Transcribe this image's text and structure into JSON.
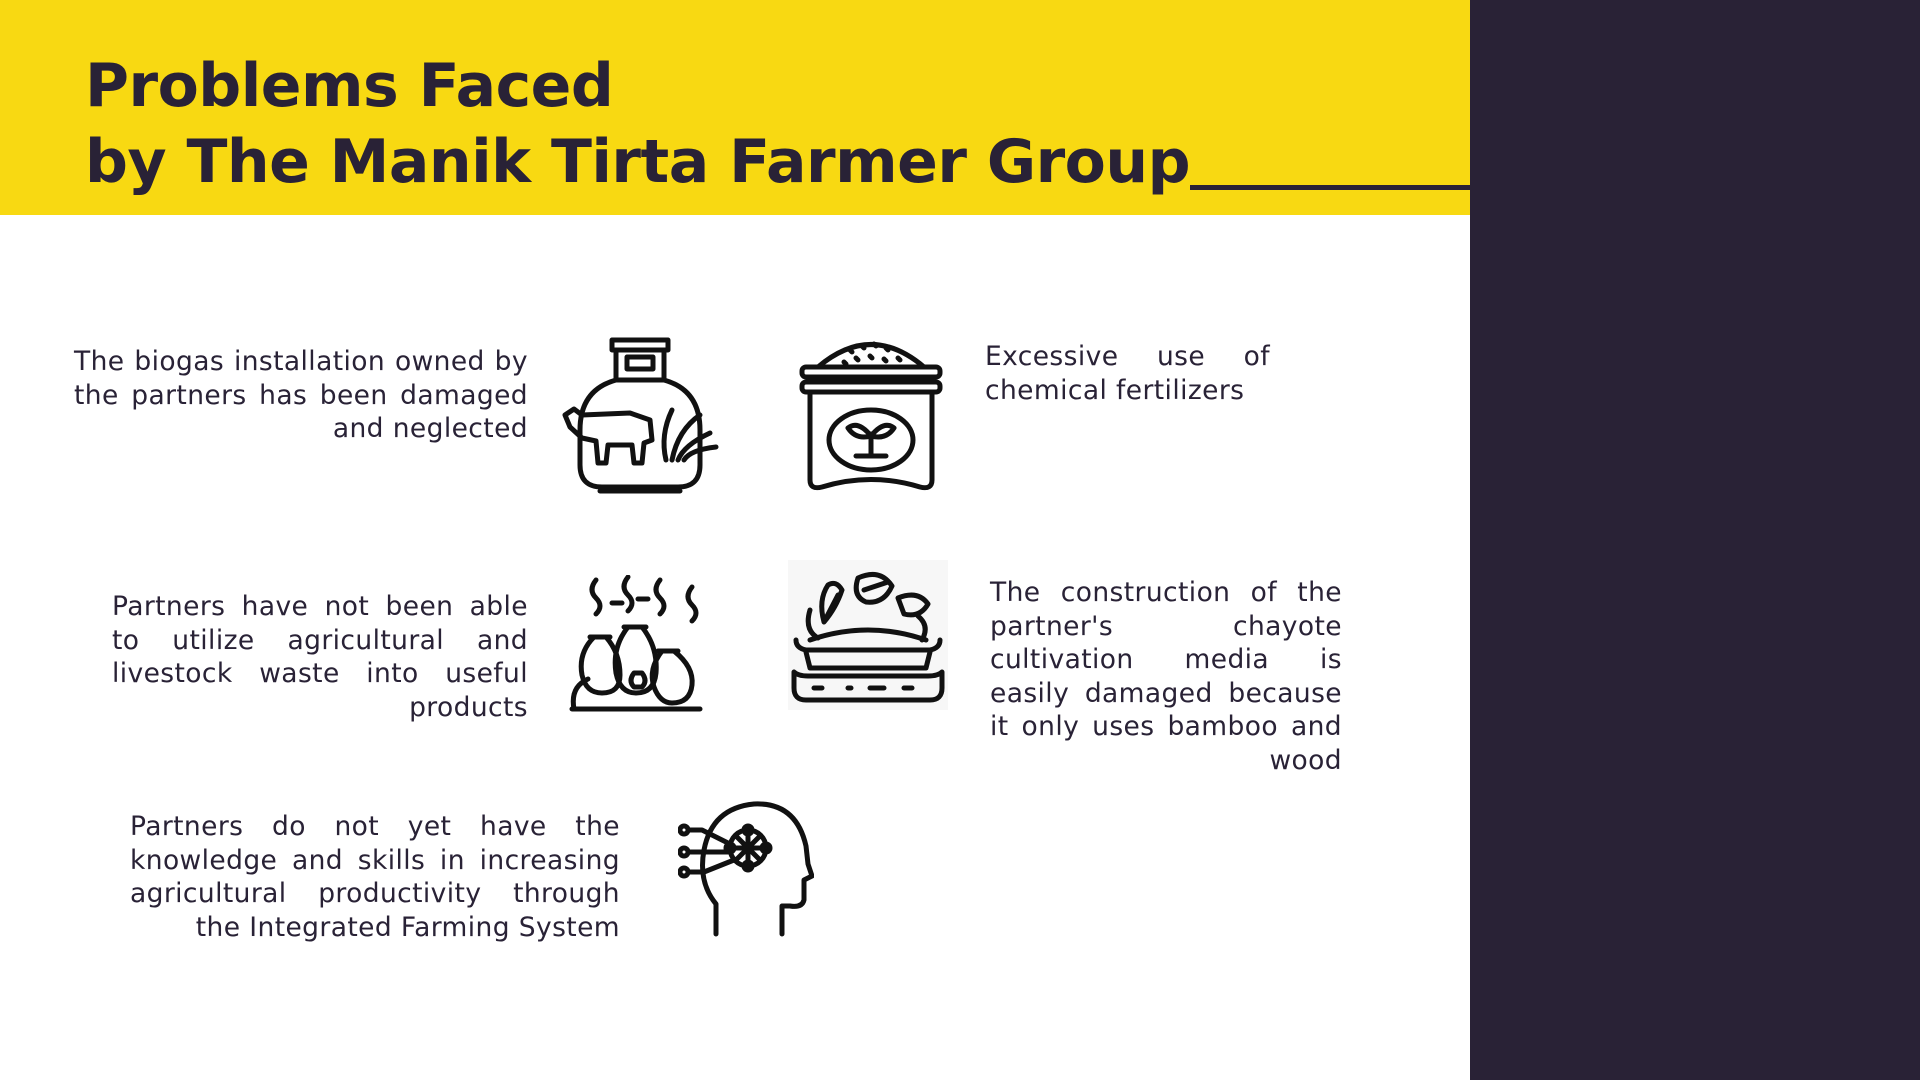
{
  "slide": {
    "title_line1": "Problems Faced",
    "title_line2": "by The Manik Tirta Farmer Group"
  },
  "problems": [
    {
      "text": "The biogas installation owned by the partners has been damaged and neglected",
      "icon": "biogas-tank-cow-icon"
    },
    {
      "text": "Excessive use of chemical fertilizers",
      "icon": "fertilizer-sack-icon"
    },
    {
      "text": "Partners have not been able to utilize agricultural and livestock waste into useful products",
      "icon": "waste-bags-icon"
    },
    {
      "text": "The construction of the partner's chayote cultivation media is easily damaged because it only uses bamboo and wood",
      "icon": "vegetable-pot-icon"
    },
    {
      "text": "Partners do not yet have the knowledge and skills in increasing agricultural productivity through the Integrated Farming System",
      "icon": "head-network-icon"
    }
  ],
  "colors": {
    "accent": "#f8d912",
    "dark": "#292236",
    "background": "#ffffff"
  }
}
